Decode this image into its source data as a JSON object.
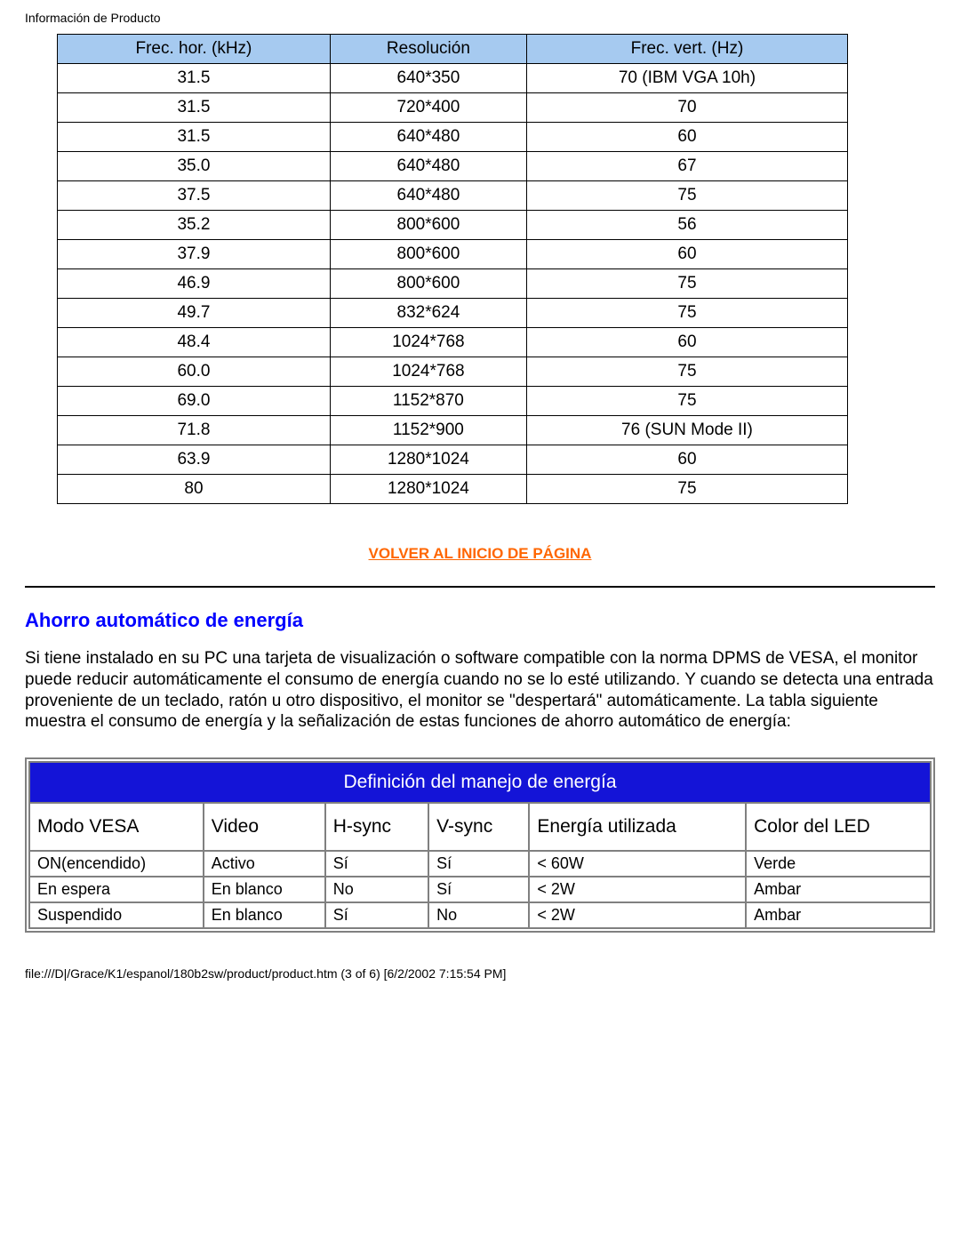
{
  "header_text": "Información de Producto",
  "res_table": {
    "columns": [
      "Frec. hor. (kHz)",
      "Resolución",
      "Frec. vert. (Hz)"
    ],
    "header_bg": "#a6caf0",
    "border_color": "#000000",
    "rows": [
      [
        "31.5",
        "640*350",
        "70 (IBM VGA 10h)"
      ],
      [
        "31.5",
        "720*400",
        "70"
      ],
      [
        "31.5",
        "640*480",
        "60"
      ],
      [
        "35.0",
        "640*480",
        "67"
      ],
      [
        "37.5",
        "640*480",
        "75"
      ],
      [
        "35.2",
        "800*600",
        "56"
      ],
      [
        "37.9",
        "800*600",
        "60"
      ],
      [
        "46.9",
        "800*600",
        "75"
      ],
      [
        "49.7",
        "832*624",
        "75"
      ],
      [
        "48.4",
        "1024*768",
        "60"
      ],
      [
        "60.0",
        "1024*768",
        "75"
      ],
      [
        "69.0",
        "1152*870",
        "75"
      ],
      [
        "71.8",
        "1152*900",
        "76 (SUN Mode II)"
      ],
      [
        "63.9",
        "1280*1024",
        "60"
      ],
      [
        "80",
        "1280*1024",
        "75"
      ]
    ]
  },
  "top_link_label": "VOLVER AL INICIO DE PÁGINA",
  "top_link_color": "#ff6600",
  "section": {
    "title": "Ahorro automático de energía",
    "title_color": "#0000ff",
    "body": "Si tiene instalado en su PC una tarjeta de visualización o software compatible con la norma DPMS de VESA, el monitor puede reducir automáticamente el consumo de energía cuando no se lo esté utilizando. Y cuando se detecta una entrada proveniente de un teclado, ratón u otro dispositivo, el monitor se \"despertará\" automáticamente. La tabla siguiente muestra el consumo de energía y la señalización de estas funciones de ahorro automático de energía:"
  },
  "power_table": {
    "title": "Definición del manejo de energía",
    "title_bg": "#1414d7",
    "title_fg": "#ffffff",
    "border_color": "#808080",
    "columns": [
      "Modo VESA",
      "Video",
      "H-sync",
      "V-sync",
      "Energía utilizada",
      "Color del LED"
    ],
    "rows": [
      [
        "ON(encendido)",
        "Activo",
        "Sí",
        "Sí",
        "< 60W",
        "Verde"
      ],
      [
        "En espera",
        "En blanco",
        "No",
        "Sí",
        "< 2W",
        "Ambar"
      ],
      [
        "Suspendido",
        "En blanco",
        "Sí",
        "No",
        "< 2W",
        "Ambar"
      ]
    ]
  },
  "footer_path": "file:///D|/Grace/K1/espanol/180b2sw/product/product.htm (3 of 6) [6/2/2002 7:15:54 PM]"
}
